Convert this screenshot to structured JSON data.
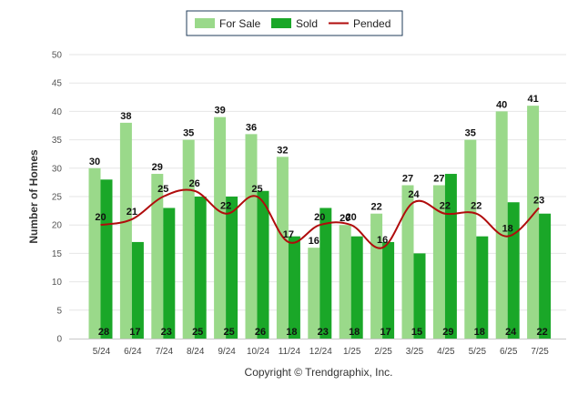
{
  "colors": {
    "for_sale": "#9ad98a",
    "sold": "#1aa728",
    "pended": "#b00c0c",
    "grid": "#e6e6e6"
  },
  "legend": {
    "for_sale": "For Sale",
    "sold": "Sold",
    "pended": "Pended"
  },
  "copyright": "Copyright © Trendgraphix, Inc.",
  "chart_data": {
    "type": "bar",
    "ylabel": "Number of Homes",
    "xlabel": "",
    "ylim": [
      0,
      50
    ],
    "yticks": [
      0,
      5,
      10,
      15,
      20,
      25,
      30,
      35,
      40,
      45,
      50
    ],
    "grid": true,
    "legend_position": "top-center",
    "categories": [
      "5/24",
      "6/24",
      "7/24",
      "8/24",
      "9/24",
      "10/24",
      "11/24",
      "12/24",
      "1/25",
      "2/25",
      "3/25",
      "4/25",
      "5/25",
      "6/25",
      "7/25"
    ],
    "series": [
      {
        "name": "For Sale",
        "type": "bar",
        "values": [
          30,
          38,
          29,
          35,
          39,
          36,
          32,
          16,
          20,
          22,
          27,
          27,
          35,
          40,
          41
        ]
      },
      {
        "name": "Sold",
        "type": "bar",
        "values": [
          28,
          17,
          23,
          25,
          25,
          26,
          18,
          23,
          18,
          17,
          15,
          29,
          18,
          24,
          22
        ]
      },
      {
        "name": "Pended",
        "type": "line",
        "values": [
          20,
          21,
          25,
          26,
          22,
          25,
          17,
          20,
          20,
          16,
          24,
          22,
          22,
          18,
          23
        ]
      }
    ]
  }
}
